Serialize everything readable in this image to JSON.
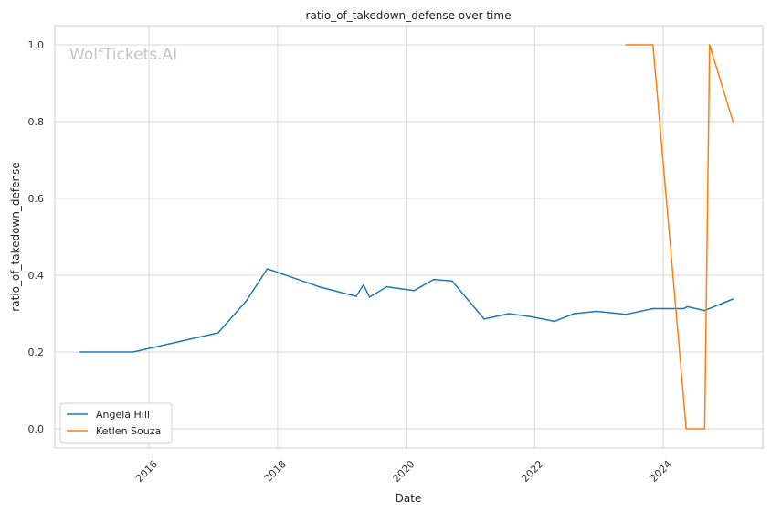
{
  "chart_data": {
    "type": "line",
    "title": "ratio_of_takedown_defense over time",
    "xlabel": "Date",
    "ylabel": "ratio_of_takedown_defense",
    "watermark": "WolfTickets.AI",
    "x_ticks": [
      "2016",
      "2018",
      "2020",
      "2022",
      "2024"
    ],
    "y_ticks": [
      "0.0",
      "0.2",
      "0.4",
      "0.6",
      "0.8",
      "1.0"
    ],
    "xlim": [
      "2014-07-15",
      "2025-07-20"
    ],
    "ylim": [
      -0.05,
      1.05
    ],
    "grid": true,
    "legend_position": "lower-left",
    "series": [
      {
        "name": "Angela Hill",
        "color": "#1f77b4",
        "points": [
          [
            "2014-12-06",
            0.2
          ],
          [
            "2015-10-03",
            0.2
          ],
          [
            "2017-01-28",
            0.25
          ],
          [
            "2017-07-07",
            0.333
          ],
          [
            "2017-11-04",
            0.417
          ],
          [
            "2018-08-25",
            0.37
          ],
          [
            "2019-03-23",
            0.345
          ],
          [
            "2019-05-04",
            0.375
          ],
          [
            "2019-06-08",
            0.343
          ],
          [
            "2019-09-14",
            0.37
          ],
          [
            "2020-02-15",
            0.36
          ],
          [
            "2020-06-06",
            0.389
          ],
          [
            "2020-09-19",
            0.385
          ],
          [
            "2021-03-20",
            0.286
          ],
          [
            "2021-08-07",
            0.3
          ],
          [
            "2021-12-11",
            0.292
          ],
          [
            "2022-04-23",
            0.28
          ],
          [
            "2022-08-13",
            0.3
          ],
          [
            "2022-12-17",
            0.306
          ],
          [
            "2023-06-03",
            0.298
          ],
          [
            "2023-11-04",
            0.313
          ],
          [
            "2024-04-27",
            0.313
          ],
          [
            "2024-05-18",
            0.318
          ],
          [
            "2024-08-24",
            0.308
          ],
          [
            "2025-02-01",
            0.338
          ]
        ]
      },
      {
        "name": "Ketlen Souza",
        "color": "#ff7f0e",
        "points": [
          [
            "2023-06-03",
            1.0
          ],
          [
            "2023-11-04",
            1.0
          ],
          [
            "2024-05-11",
            0.0
          ],
          [
            "2024-08-24",
            0.0
          ],
          [
            "2024-09-21",
            1.0
          ],
          [
            "2025-02-01",
            0.8
          ]
        ]
      }
    ]
  }
}
